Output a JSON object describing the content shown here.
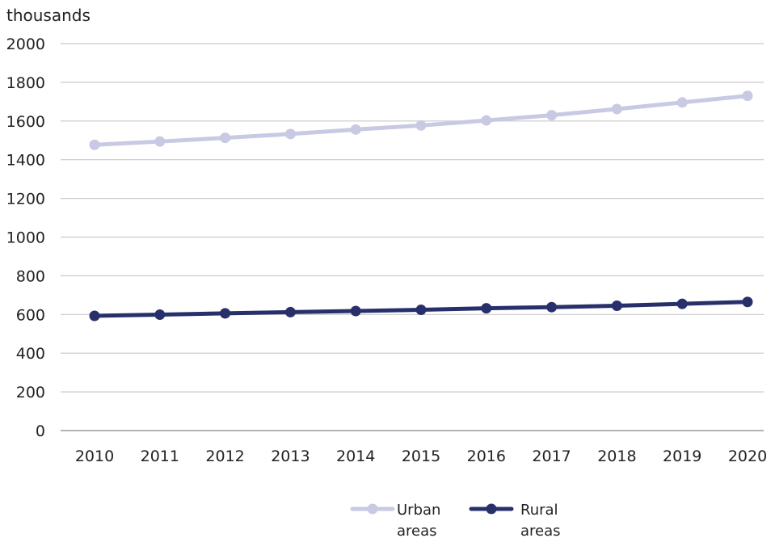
{
  "chart_data": {
    "type": "line",
    "unit_label": "thousands",
    "x": [
      "2010",
      "2011",
      "2012",
      "2013",
      "2014",
      "2015",
      "2016",
      "2017",
      "2018",
      "2019",
      "2020"
    ],
    "ylim": [
      0,
      2000
    ],
    "y_ticks": [
      "0",
      "200",
      "400",
      "600",
      "800",
      "1000",
      "1200",
      "1400",
      "1600",
      "1800",
      "2000"
    ],
    "grid": true,
    "legend_placement": "bottom-center",
    "series": [
      {
        "name_lines": [
          "Urban",
          "areas"
        ],
        "color": "#c8c9e3",
        "values": [
          1477,
          1494,
          1513,
          1533,
          1556,
          1577,
          1603,
          1630,
          1662,
          1696,
          1730
        ]
      },
      {
        "name_lines": [
          "Rural",
          "areas"
        ],
        "color": "#28306b",
        "values": [
          593,
          599,
          606,
          612,
          618,
          624,
          632,
          638,
          645,
          655,
          665
        ]
      }
    ]
  }
}
